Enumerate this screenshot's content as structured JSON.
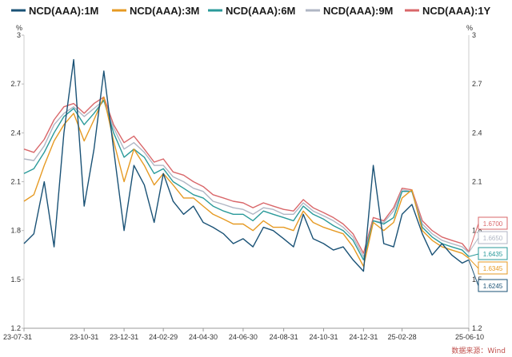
{
  "chart_data": {
    "type": "line",
    "title": "",
    "xlabel": "",
    "ylabel": "",
    "unit_left": "%",
    "unit_right": "%",
    "source": "数据来源：Wind",
    "ylim": [
      1.2,
      3.0
    ],
    "yticks": [
      "1.2",
      "1.5",
      "1.8",
      "2.1",
      "2.4",
      "2.7",
      "3"
    ],
    "xtick_labels": [
      "23-07-31",
      "23-10-31",
      "23-12-31",
      "24-02-29",
      "24-04-30",
      "24-06-30",
      "24-08-31",
      "24-10-31",
      "24-12-31",
      "25-02-28",
      "25-06-10"
    ],
    "xtick_dates": [
      "2023-07-31",
      "2023-10-31",
      "2023-12-31",
      "2024-02-29",
      "2024-04-30",
      "2024-06-30",
      "2024-08-31",
      "2024-10-31",
      "2024-12-31",
      "2025-02-28",
      "2025-06-10"
    ],
    "x": [
      "2023-07-31",
      "2023-08-15",
      "2023-08-31",
      "2023-09-15",
      "2023-09-30",
      "2023-10-15",
      "2023-10-31",
      "2023-11-15",
      "2023-11-30",
      "2023-12-15",
      "2023-12-31",
      "2024-01-15",
      "2024-01-31",
      "2024-02-15",
      "2024-02-29",
      "2024-03-15",
      "2024-03-31",
      "2024-04-15",
      "2024-04-30",
      "2024-05-15",
      "2024-05-31",
      "2024-06-15",
      "2024-06-30",
      "2024-07-15",
      "2024-07-31",
      "2024-08-15",
      "2024-08-31",
      "2024-09-15",
      "2024-09-30",
      "2024-10-15",
      "2024-10-31",
      "2024-11-15",
      "2024-11-30",
      "2024-12-15",
      "2024-12-31",
      "2025-01-15",
      "2025-01-31",
      "2025-02-15",
      "2025-02-28",
      "2025-03-15",
      "2025-03-31",
      "2025-04-15",
      "2025-04-30",
      "2025-05-15",
      "2025-05-31",
      "2025-06-10"
    ],
    "series": [
      {
        "name": "NCD(AAA):1M",
        "color": "#1a5276",
        "end_label": "1.6245",
        "values": [
          1.72,
          1.78,
          2.1,
          1.7,
          2.4,
          2.85,
          1.95,
          2.3,
          2.78,
          2.3,
          1.8,
          2.2,
          2.08,
          1.85,
          2.15,
          1.98,
          1.9,
          1.95,
          1.85,
          1.82,
          1.78,
          1.72,
          1.75,
          1.7,
          1.82,
          1.8,
          1.75,
          1.7,
          1.9,
          1.75,
          1.72,
          1.68,
          1.7,
          1.62,
          1.55,
          2.2,
          1.72,
          1.7,
          1.9,
          1.96,
          1.78,
          1.65,
          1.72,
          1.65,
          1.6,
          1.62
        ]
      },
      {
        "name": "NCD(AAA):3M",
        "color": "#e69a23",
        "end_label": "1.6345",
        "values": [
          1.98,
          2.02,
          2.2,
          2.35,
          2.45,
          2.52,
          2.35,
          2.48,
          2.62,
          2.35,
          2.1,
          2.3,
          2.2,
          2.08,
          2.15,
          2.08,
          2.0,
          2.0,
          1.95,
          1.9,
          1.87,
          1.84,
          1.84,
          1.8,
          1.86,
          1.82,
          1.82,
          1.8,
          1.92,
          1.85,
          1.82,
          1.8,
          1.78,
          1.7,
          1.58,
          1.85,
          1.8,
          1.85,
          2.0,
          2.05,
          1.8,
          1.74,
          1.7,
          1.68,
          1.66,
          1.63
        ]
      },
      {
        "name": "NCD(AAA):6M",
        "color": "#2a9a9a",
        "end_label": "1.6435",
        "values": [
          2.15,
          2.18,
          2.28,
          2.4,
          2.5,
          2.55,
          2.45,
          2.52,
          2.6,
          2.4,
          2.25,
          2.3,
          2.25,
          2.15,
          2.18,
          2.1,
          2.06,
          2.02,
          2.0,
          1.95,
          1.92,
          1.9,
          1.9,
          1.86,
          1.92,
          1.9,
          1.88,
          1.86,
          1.95,
          1.9,
          1.87,
          1.83,
          1.8,
          1.74,
          1.62,
          1.86,
          1.84,
          1.88,
          2.04,
          2.04,
          1.82,
          1.76,
          1.72,
          1.7,
          1.68,
          1.64
        ]
      },
      {
        "name": "NCD(AAA):9M",
        "color": "#b0b6c4",
        "end_label": "1.6650",
        "values": [
          2.24,
          2.23,
          2.32,
          2.45,
          2.52,
          2.56,
          2.5,
          2.55,
          2.6,
          2.43,
          2.3,
          2.34,
          2.28,
          2.2,
          2.2,
          2.13,
          2.1,
          2.06,
          2.04,
          1.98,
          1.96,
          1.94,
          1.93,
          1.9,
          1.94,
          1.93,
          1.9,
          1.9,
          1.97,
          1.92,
          1.89,
          1.86,
          1.82,
          1.76,
          1.64,
          1.86,
          1.85,
          1.92,
          2.05,
          2.04,
          1.84,
          1.78,
          1.74,
          1.72,
          1.7,
          1.665
        ]
      },
      {
        "name": "NCD(AAA):1Y",
        "color": "#d9676a",
        "end_label": "1.6700",
        "values": [
          2.3,
          2.28,
          2.36,
          2.48,
          2.56,
          2.58,
          2.52,
          2.58,
          2.62,
          2.45,
          2.34,
          2.38,
          2.3,
          2.22,
          2.24,
          2.16,
          2.14,
          2.1,
          2.07,
          2.02,
          2.0,
          1.98,
          1.97,
          1.94,
          1.97,
          1.95,
          1.93,
          1.92,
          1.99,
          1.94,
          1.91,
          1.88,
          1.84,
          1.78,
          1.66,
          1.88,
          1.86,
          1.94,
          2.06,
          2.05,
          1.86,
          1.8,
          1.76,
          1.74,
          1.72,
          1.67
        ]
      }
    ],
    "grid": false,
    "legend_position": "top"
  }
}
